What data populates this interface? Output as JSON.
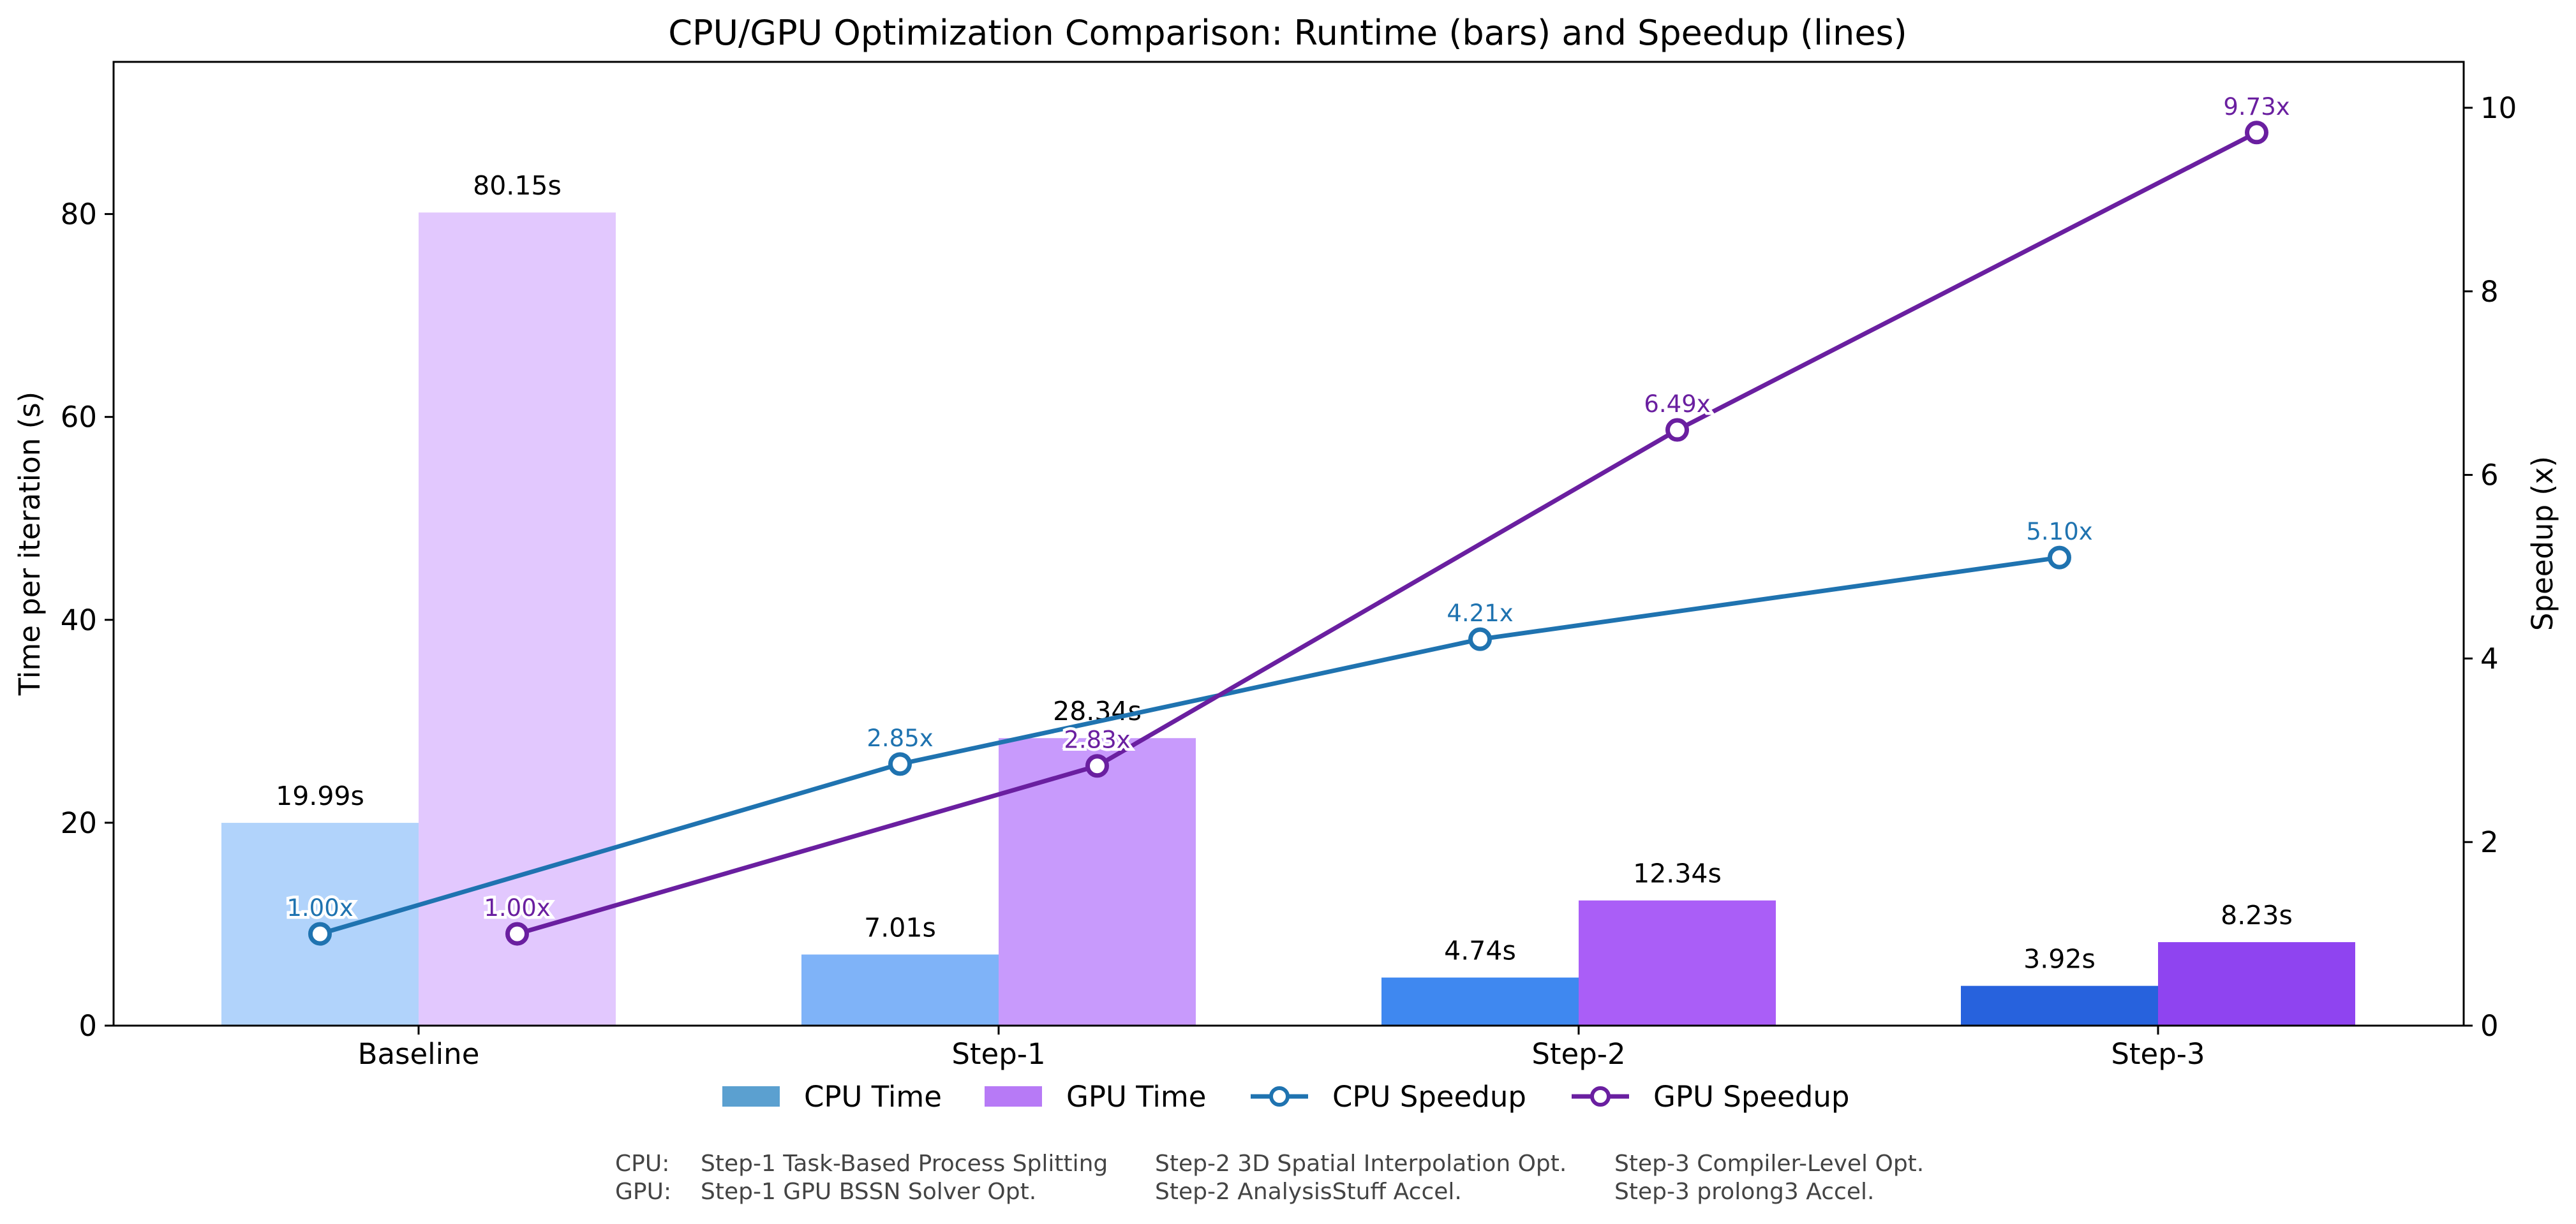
{
  "chart_data": {
    "type": "bar",
    "title": "CPU/GPU Optimization Comparison: Runtime (bars) and Speedup (lines)",
    "categories": [
      "Baseline",
      "Step-1",
      "Step-2",
      "Step-3"
    ],
    "ylabel_left": "Time per iteration (s)",
    "ylabel_right": "Speedup (x)",
    "ylim_left": [
      0,
      95
    ],
    "ylim_right": [
      0,
      10.5
    ],
    "yticks_left": [
      "0",
      "20",
      "40",
      "60",
      "80"
    ],
    "yticks_right": [
      "0",
      "2",
      "4",
      "6",
      "8",
      "10"
    ],
    "legend_position": "bottom-center",
    "grid": false,
    "series": [
      {
        "name": "CPU Time",
        "kind": "bar",
        "values": [
          19.99,
          7.01,
          4.74,
          3.92
        ],
        "labels": [
          "19.99s",
          "7.01s",
          "4.74s",
          "3.92s"
        ],
        "colors": [
          "#b1d3fb",
          "#7fb3f8",
          "#3f88f0",
          "#2762dd"
        ],
        "legend_color": "#5ba0d0"
      },
      {
        "name": "GPU Time",
        "kind": "bar",
        "values": [
          80.15,
          28.34,
          12.34,
          8.23
        ],
        "labels": [
          "80.15s",
          "28.34s",
          "12.34s",
          "8.23s"
        ],
        "colors": [
          "#e2c8fe",
          "#c89afc",
          "#aa5ef7",
          "#8f44f0"
        ],
        "legend_color": "#b77af6"
      },
      {
        "name": "CPU Speedup",
        "kind": "line",
        "values": [
          1.0,
          2.85,
          4.21,
          5.1
        ],
        "labels": [
          "1.00x",
          "2.85x",
          "4.21x",
          "5.10x"
        ],
        "color": "#1f73b0"
      },
      {
        "name": "GPU Speedup",
        "kind": "line",
        "values": [
          1.0,
          2.83,
          6.49,
          9.73
        ],
        "labels": [
          "1.00x",
          "2.83x",
          "6.49x",
          "9.73x"
        ],
        "color": "#6a1fa0"
      }
    ],
    "notes": {
      "cpu_prefix": "CPU:",
      "gpu_prefix": "GPU:",
      "cpu": [
        "Step-1 Task-Based Process Splitting",
        "Step-2 3D Spatial Interpolation Opt.",
        "Step-3 Compiler-Level Opt."
      ],
      "gpu": [
        "Step-1 GPU BSSN Solver Opt.",
        "Step-2 AnalysisStuff Accel.",
        "Step-3 prolong3 Accel."
      ]
    }
  }
}
